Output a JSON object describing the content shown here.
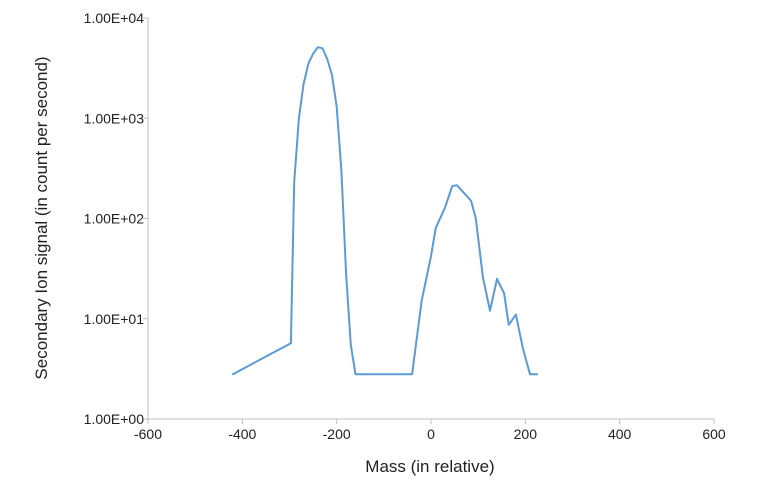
{
  "chart_data": {
    "type": "line",
    "title": "",
    "xlabel": "Mass (in relative)",
    "ylabel": "Secondary Ion signal (in count per second)",
    "xlim": [
      -600,
      600
    ],
    "ylim": [
      1,
      10000
    ],
    "y_scale": "log",
    "grid": false,
    "legend": "none",
    "x_ticks": [
      -600,
      -400,
      -200,
      0,
      200,
      400,
      600
    ],
    "x_tick_labels": [
      "-600",
      "-400",
      "-200",
      "0",
      "200",
      "400",
      "600"
    ],
    "y_ticks": [
      1,
      10,
      100,
      1000,
      10000
    ],
    "y_tick_labels": [
      "1.00E+00",
      "1.00E+01",
      "1.00E+02",
      "1.00E+03",
      "1.00E+04"
    ],
    "colors": {
      "series": "#5b9bd5",
      "axis": "#bfbfbf",
      "text": "#222222"
    },
    "series": [
      {
        "color": "#5b9bd5",
        "points": [
          [
            -420,
            2.8
          ],
          [
            -297,
            5.7
          ],
          [
            -290,
            230
          ],
          [
            -280,
            1000
          ],
          [
            -270,
            2200
          ],
          [
            -260,
            3500
          ],
          [
            -250,
            4400
          ],
          [
            -240,
            5100
          ],
          [
            -230,
            5000
          ],
          [
            -220,
            3900
          ],
          [
            -210,
            2700
          ],
          [
            -200,
            1300
          ],
          [
            -190,
            300
          ],
          [
            -180,
            28
          ],
          [
            -170,
            5.5
          ],
          [
            -160,
            2.8
          ],
          [
            -150,
            2.8
          ],
          [
            -100,
            2.8
          ],
          [
            -40,
            2.8
          ],
          [
            -20,
            15
          ],
          [
            0,
            42
          ],
          [
            10,
            80
          ],
          [
            30,
            130
          ],
          [
            45,
            210
          ],
          [
            55,
            215
          ],
          [
            70,
            180
          ],
          [
            85,
            150
          ],
          [
            95,
            100
          ],
          [
            110,
            26
          ],
          [
            125,
            12
          ],
          [
            140,
            25
          ],
          [
            155,
            18
          ],
          [
            165,
            8.7
          ],
          [
            180,
            11
          ],
          [
            195,
            5
          ],
          [
            210,
            2.8
          ],
          [
            225,
            2.8
          ]
        ]
      }
    ]
  }
}
